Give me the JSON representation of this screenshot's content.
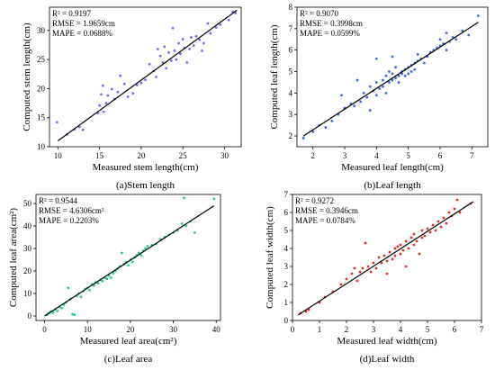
{
  "chart_data": [
    {
      "type": "scatter",
      "caption": "(a)Stem length",
      "xlabel": "Measured stem length(cm)",
      "ylabel": "Computed stem length(cm)",
      "stats": [
        "R² = 0.9197",
        "RMSE = 1.9659cm",
        "MAPE = 0.0688%"
      ],
      "xlim": [
        9,
        32
      ],
      "ylim": [
        10,
        34
      ],
      "xticks": [
        10,
        15,
        20,
        25,
        30
      ],
      "yticks": [
        10,
        15,
        20,
        25,
        30
      ],
      "fit_line": [
        [
          10,
          11.0
        ],
        [
          31.5,
          33.5
        ]
      ],
      "series": [
        {
          "color": "#7b68ee",
          "points": [
            [
              9.9,
              14.2
            ],
            [
              11.1,
              12.1
            ],
            [
              12.0,
              13.0
            ],
            [
              12.6,
              13.4
            ],
            [
              13.0,
              12.9
            ],
            [
              14.8,
              15.8
            ],
            [
              15.0,
              17.1
            ],
            [
              15.2,
              19.0
            ],
            [
              15.4,
              20.5
            ],
            [
              15.5,
              16.0
            ],
            [
              15.8,
              17.5
            ],
            [
              16.0,
              18.8
            ],
            [
              16.5,
              19.9
            ],
            [
              16.8,
              18.2
            ],
            [
              17.2,
              19.4
            ],
            [
              17.5,
              22.2
            ],
            [
              18.0,
              20.8
            ],
            [
              18.4,
              18.6
            ],
            [
              19.0,
              19.2
            ],
            [
              19.5,
              20.6
            ],
            [
              20.0,
              21.0
            ],
            [
              20.5,
              21.5
            ],
            [
              21.0,
              24.2
            ],
            [
              21.5,
              23.0
            ],
            [
              21.8,
              22.0
            ],
            [
              22.0,
              26.8
            ],
            [
              22.3,
              25.6
            ],
            [
              22.6,
              24.5
            ],
            [
              22.8,
              27.2
            ],
            [
              23.0,
              23.5
            ],
            [
              23.3,
              26.2
            ],
            [
              23.6,
              24.8
            ],
            [
              23.8,
              30.4
            ],
            [
              24.0,
              26.5
            ],
            [
              24.2,
              25.0
            ],
            [
              24.5,
              27.8
            ],
            [
              24.7,
              26.0
            ],
            [
              25.0,
              28.5
            ],
            [
              25.2,
              27.0
            ],
            [
              25.5,
              24.5
            ],
            [
              25.8,
              26.8
            ],
            [
              26.0,
              28.8
            ],
            [
              26.3,
              27.4
            ],
            [
              26.6,
              29.0
            ],
            [
              27.0,
              28.4
            ],
            [
              27.3,
              26.5
            ],
            [
              27.5,
              27.8
            ],
            [
              28.0,
              31.2
            ],
            [
              28.3,
              29.5
            ],
            [
              29.0,
              30.5
            ],
            [
              29.5,
              31.0
            ],
            [
              30.5,
              31.8
            ],
            [
              31.0,
              33.2
            ],
            [
              31.3,
              33.0
            ]
          ]
        }
      ]
    },
    {
      "type": "scatter",
      "caption": "(b)Leaf length",
      "xlabel": "Measured leaf length(cm)",
      "ylabel": "Computed leaf length(cm)",
      "stats": [
        "R² = 0.9070",
        "RMSE = 0.3998cm",
        "MAPE = 0.0599%"
      ],
      "xlim": [
        1.5,
        7.5
      ],
      "ylim": [
        1.5,
        8
      ],
      "xticks": [
        2,
        3,
        4,
        5,
        6,
        7
      ],
      "yticks": [
        2,
        3,
        4,
        5,
        6,
        7,
        8
      ],
      "fit_line": [
        [
          1.7,
          2.0
        ],
        [
          7.2,
          7.3
        ]
      ],
      "series": [
        {
          "color": "#4169e1",
          "points": [
            [
              1.7,
              1.9
            ],
            [
              2.0,
              2.2
            ],
            [
              2.2,
              2.5
            ],
            [
              2.4,
              2.4
            ],
            [
              2.6,
              2.7
            ],
            [
              2.8,
              3.0
            ],
            [
              2.9,
              3.9
            ],
            [
              3.0,
              3.3
            ],
            [
              3.2,
              3.5
            ],
            [
              3.3,
              3.4
            ],
            [
              3.4,
              4.6
            ],
            [
              3.5,
              3.6
            ],
            [
              3.6,
              4.0
            ],
            [
              3.7,
              3.8
            ],
            [
              3.8,
              4.3
            ],
            [
              3.9,
              4.1
            ],
            [
              4.0,
              4.5
            ],
            [
              4.0,
              3.9
            ],
            [
              4.1,
              4.2
            ],
            [
              4.2,
              4.6
            ],
            [
              4.2,
              4.3
            ],
            [
              4.3,
              4.8
            ],
            [
              4.3,
              4.0
            ],
            [
              4.4,
              4.5
            ],
            [
              4.4,
              5.0
            ],
            [
              4.5,
              4.6
            ],
            [
              4.5,
              4.9
            ],
            [
              4.6,
              4.7
            ],
            [
              4.6,
              5.2
            ],
            [
              4.7,
              4.8
            ],
            [
              4.7,
              4.5
            ],
            [
              4.8,
              5.0
            ],
            [
              4.8,
              4.9
            ],
            [
              4.9,
              5.1
            ],
            [
              4.9,
              4.8
            ],
            [
              5.0,
              5.2
            ],
            [
              5.0,
              4.9
            ],
            [
              5.1,
              5.3
            ],
            [
              5.1,
              5.0
            ],
            [
              5.2,
              5.4
            ],
            [
              5.2,
              5.1
            ],
            [
              5.3,
              5.5
            ],
            [
              5.3,
              5.8
            ],
            [
              5.4,
              5.6
            ],
            [
              5.5,
              5.4
            ],
            [
              5.6,
              5.7
            ],
            [
              5.7,
              5.9
            ],
            [
              5.8,
              6.0
            ],
            [
              5.9,
              6.1
            ],
            [
              6.0,
              6.2
            ],
            [
              6.0,
              6.5
            ],
            [
              6.1,
              6.3
            ],
            [
              6.2,
              6.0
            ],
            [
              6.2,
              6.8
            ],
            [
              6.3,
              6.4
            ],
            [
              6.4,
              6.6
            ],
            [
              6.5,
              6.5
            ],
            [
              6.7,
              6.9
            ],
            [
              6.9,
              6.7
            ],
            [
              7.2,
              7.6
            ],
            [
              4.0,
              5.6
            ],
            [
              4.5,
              5.7
            ],
            [
              3.8,
              3.2
            ]
          ]
        }
      ]
    },
    {
      "type": "scatter",
      "caption": "(c)Leaf area",
      "xlabel": "Measured leaf area(cm²)",
      "ylabel": "Computed leaf area(cm²)",
      "stats": [
        "R² = 0.9544",
        "RMSE = 4.6306cm²",
        "MAPE = 0.2203%"
      ],
      "xlim": [
        -2,
        41
      ],
      "ylim": [
        -2,
        54
      ],
      "xticks": [
        0,
        10,
        20,
        30,
        40
      ],
      "yticks": [
        0,
        10,
        20,
        30,
        40,
        50
      ],
      "fit_line": [
        [
          0,
          0.0
        ],
        [
          39.5,
          49.0
        ]
      ],
      "series": [
        {
          "color": "#20c997",
          "points": [
            [
              0.5,
              0.5
            ],
            [
              1.0,
              1.2
            ],
            [
              1.5,
              2.0
            ],
            [
              2.0,
              1.5
            ],
            [
              2.5,
              3.0
            ],
            [
              3.0,
              2.2
            ],
            [
              3.5,
              4.0
            ],
            [
              4.0,
              3.5
            ],
            [
              4.5,
              5.0
            ],
            [
              5.0,
              6.0
            ],
            [
              5.5,
              12.5
            ],
            [
              6.0,
              7.5
            ],
            [
              6.5,
              0.8
            ],
            [
              7.0,
              0.5
            ],
            [
              7.5,
              9.0
            ],
            [
              8.0,
              10.0
            ],
            [
              8.5,
              8.5
            ],
            [
              9.0,
              11.0
            ],
            [
              9.5,
              12.0
            ],
            [
              10.0,
              12.5
            ],
            [
              10.5,
              11.5
            ],
            [
              11.0,
              14.0
            ],
            [
              11.5,
              13.5
            ],
            [
              12.0,
              15.0
            ],
            [
              12.5,
              14.5
            ],
            [
              13.0,
              16.0
            ],
            [
              13.5,
              15.5
            ],
            [
              14.0,
              17.0
            ],
            [
              14.5,
              16.5
            ],
            [
              15.0,
              18.0
            ],
            [
              15.5,
              17.0
            ],
            [
              16.0,
              19.0
            ],
            [
              16.5,
              20.0
            ],
            [
              17.0,
              21.0
            ],
            [
              17.5,
              22.0
            ],
            [
              18.0,
              28.0
            ],
            [
              18.5,
              23.0
            ],
            [
              19.0,
              24.0
            ],
            [
              19.5,
              22.5
            ],
            [
              20.0,
              25.0
            ],
            [
              20.5,
              24.0
            ],
            [
              21.0,
              26.0
            ],
            [
              21.5,
              27.0
            ],
            [
              22.0,
              28.0
            ],
            [
              22.5,
              27.0
            ],
            [
              23.0,
              29.0
            ],
            [
              23.5,
              30.0
            ],
            [
              24.0,
              31.0
            ],
            [
              25.0,
              31.5
            ],
            [
              26.0,
              32.0
            ],
            [
              27.0,
              34.0
            ],
            [
              28.0,
              35.0
            ],
            [
              29.0,
              36.0
            ],
            [
              30.0,
              37.0
            ],
            [
              31.0,
              38.0
            ],
            [
              32.0,
              41.0
            ],
            [
              32.5,
              52.5
            ],
            [
              33.0,
              40.0
            ],
            [
              34.0,
              42.0
            ],
            [
              35.0,
              37.0
            ],
            [
              39.5,
              52.0
            ]
          ]
        }
      ]
    },
    {
      "type": "scatter",
      "caption": "(d)Leaf width",
      "xlabel": "Measured leaf width(cm)",
      "ylabel": "Computed leaf width(cm)",
      "stats": [
        "R² = 0.9272",
        "RMSE = 0.3946cm",
        "MAPE = 0.0784%"
      ],
      "xlim": [
        0,
        7
      ],
      "ylim": [
        0,
        7
      ],
      "xticks": [
        0,
        1,
        2,
        3,
        4,
        5,
        6,
        7
      ],
      "yticks": [
        0,
        1,
        2,
        3,
        4,
        5,
        6,
        7
      ],
      "fit_line": [
        [
          0.2,
          0.3
        ],
        [
          6.7,
          6.6
        ]
      ],
      "series": [
        {
          "color": "#e0301e",
          "points": [
            [
              0.3,
              0.4
            ],
            [
              0.5,
              0.5
            ],
            [
              0.6,
              0.6
            ],
            [
              1.0,
              1.0
            ],
            [
              1.2,
              1.3
            ],
            [
              1.5,
              1.6
            ],
            [
              1.8,
              2.0
            ],
            [
              2.0,
              2.3
            ],
            [
              2.2,
              2.6
            ],
            [
              2.3,
              2.9
            ],
            [
              2.4,
              2.2
            ],
            [
              2.5,
              2.7
            ],
            [
              2.6,
              2.9
            ],
            [
              2.7,
              4.3
            ],
            [
              2.8,
              3.0
            ],
            [
              2.9,
              2.7
            ],
            [
              3.0,
              3.2
            ],
            [
              3.1,
              2.9
            ],
            [
              3.2,
              3.5
            ],
            [
              3.3,
              3.2
            ],
            [
              3.4,
              3.6
            ],
            [
              3.5,
              3.3
            ],
            [
              3.5,
              2.6
            ],
            [
              3.6,
              3.8
            ],
            [
              3.7,
              3.4
            ],
            [
              3.8,
              4.0
            ],
            [
              3.8,
              3.6
            ],
            [
              3.9,
              4.1
            ],
            [
              4.0,
              3.7
            ],
            [
              4.0,
              4.2
            ],
            [
              4.1,
              3.9
            ],
            [
              4.2,
              4.4
            ],
            [
              4.2,
              3.0
            ],
            [
              4.3,
              4.0
            ],
            [
              4.4,
              4.6
            ],
            [
              4.5,
              4.2
            ],
            [
              4.5,
              4.8
            ],
            [
              4.6,
              4.4
            ],
            [
              4.7,
              3.7
            ],
            [
              4.8,
              4.6
            ],
            [
              4.8,
              5.0
            ],
            [
              4.9,
              4.7
            ],
            [
              5.0,
              5.1
            ],
            [
              5.1,
              4.9
            ],
            [
              5.2,
              5.3
            ],
            [
              5.3,
              5.0
            ],
            [
              5.4,
              5.5
            ],
            [
              5.5,
              5.2
            ],
            [
              5.6,
              5.7
            ],
            [
              5.7,
              5.4
            ],
            [
              5.8,
              6.0
            ],
            [
              5.9,
              5.8
            ],
            [
              6.0,
              6.2
            ],
            [
              6.1,
              6.7
            ],
            [
              6.2,
              6.0
            ],
            [
              6.6,
              6.5
            ]
          ]
        }
      ]
    }
  ]
}
